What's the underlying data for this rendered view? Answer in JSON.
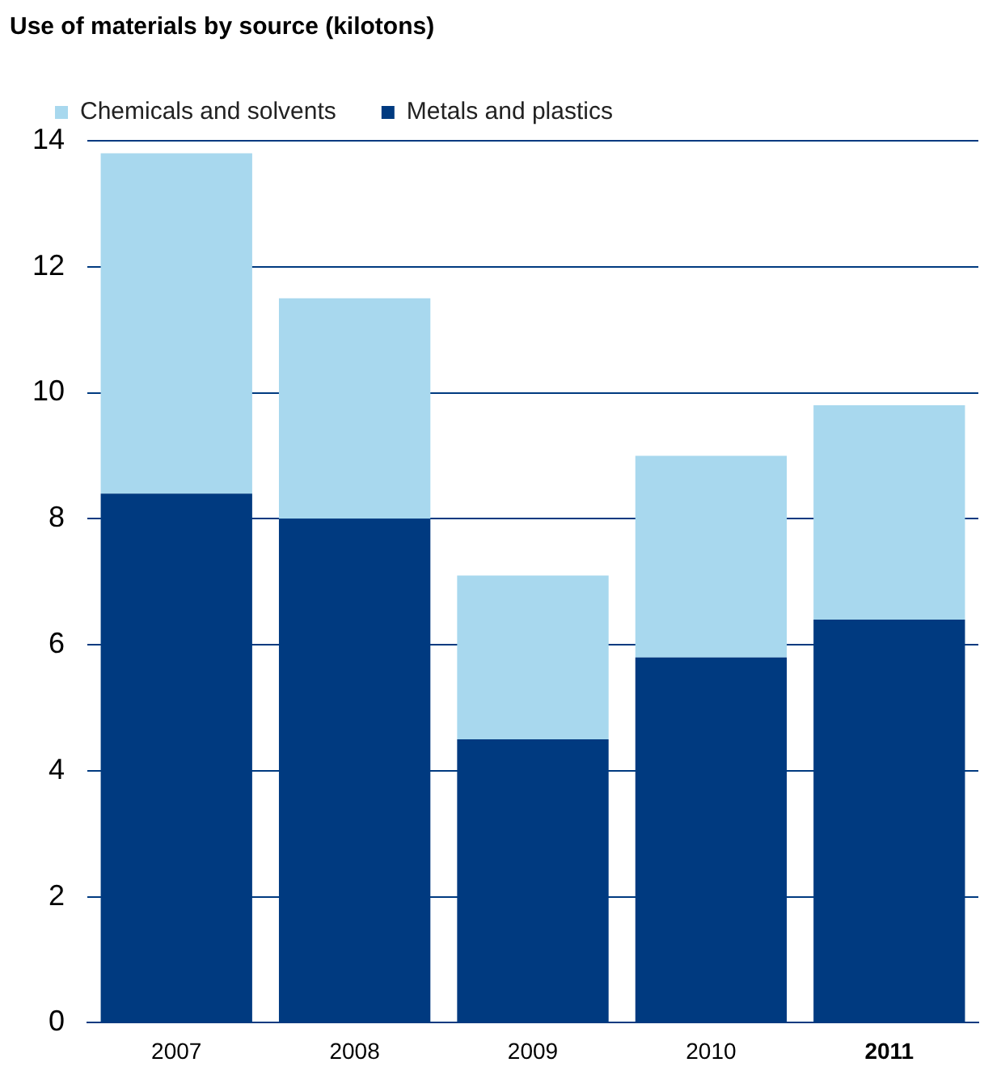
{
  "chart_data": {
    "type": "bar",
    "title": "Use of materials by source (kilotons)",
    "categories": [
      "2007",
      "2008",
      "2009",
      "2010",
      "2011"
    ],
    "stacked": true,
    "series": [
      {
        "name": "Metals and plastics",
        "color": "#003a80",
        "values": [
          8.4,
          8.0,
          4.5,
          5.8,
          6.4
        ]
      },
      {
        "name": "Chemicals and solvents",
        "color": "#a8d8ee",
        "values": [
          5.4,
          3.5,
          2.6,
          3.2,
          3.4
        ]
      }
    ],
    "ylim": [
      0,
      14
    ],
    "yticks": [
      0,
      2,
      4,
      6,
      8,
      10,
      12,
      14
    ],
    "grid": "y",
    "legend": "top left"
  }
}
